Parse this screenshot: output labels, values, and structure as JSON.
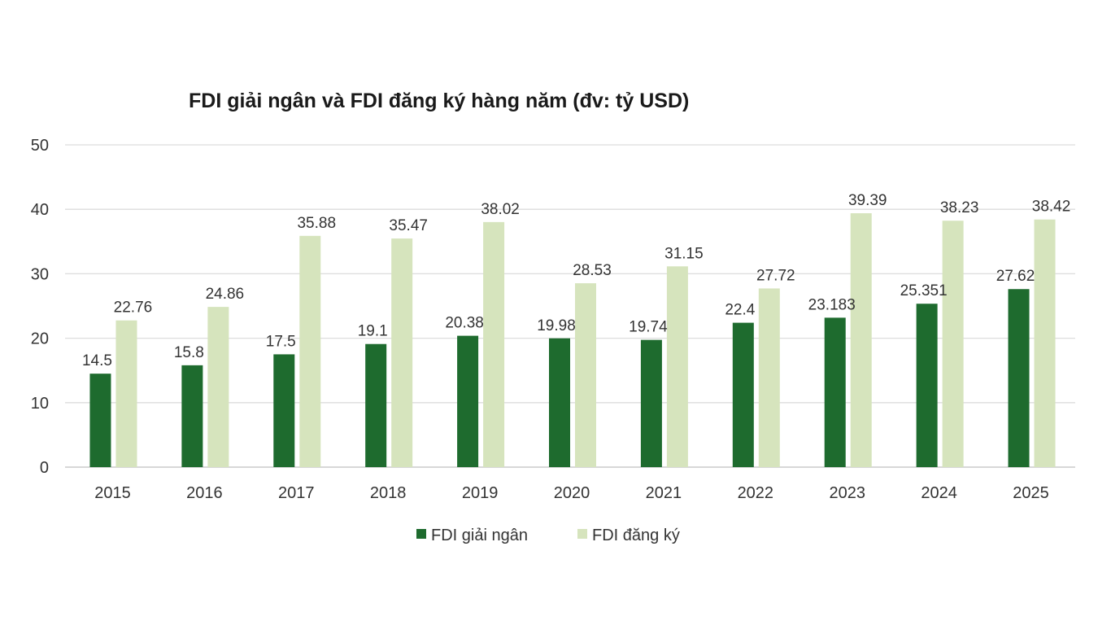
{
  "chart_data": {
    "type": "bar",
    "title": "FDI giải ngân và FDI đăng ký hàng năm (đv: tỷ USD)",
    "categories": [
      "2015",
      "2016",
      "2017",
      "2018",
      "2019",
      "2020",
      "2021",
      "2022",
      "2023",
      "2024",
      "2025"
    ],
    "series": [
      {
        "name": "FDI giải ngân",
        "color": "#1e6b2e",
        "values": [
          14.5,
          15.8,
          17.5,
          19.1,
          20.38,
          19.98,
          19.74,
          22.4,
          23.183,
          25.351,
          27.62
        ],
        "labels": [
          "14.5",
          "15.8",
          "17.5",
          "19.1",
          "20.38",
          "19.98",
          "19.74",
          "22.4",
          "23.183",
          "25.351",
          "27.62"
        ]
      },
      {
        "name": "FDI đăng ký",
        "color": "#d6e4bd",
        "values": [
          22.76,
          24.86,
          35.88,
          35.47,
          38.02,
          28.53,
          31.15,
          27.72,
          39.39,
          38.23,
          38.42
        ],
        "labels": [
          "22.76",
          "24.86",
          "35.88",
          "35.47",
          "38.02",
          "28.53",
          "31.15",
          "27.72",
          "39.39",
          "38.23",
          "38.42"
        ]
      }
    ],
    "ylim": [
      0,
      50
    ],
    "yticks": [
      "0",
      "10",
      "20",
      "30",
      "40",
      "50"
    ],
    "grid": true,
    "legend_position": "bottom"
  }
}
